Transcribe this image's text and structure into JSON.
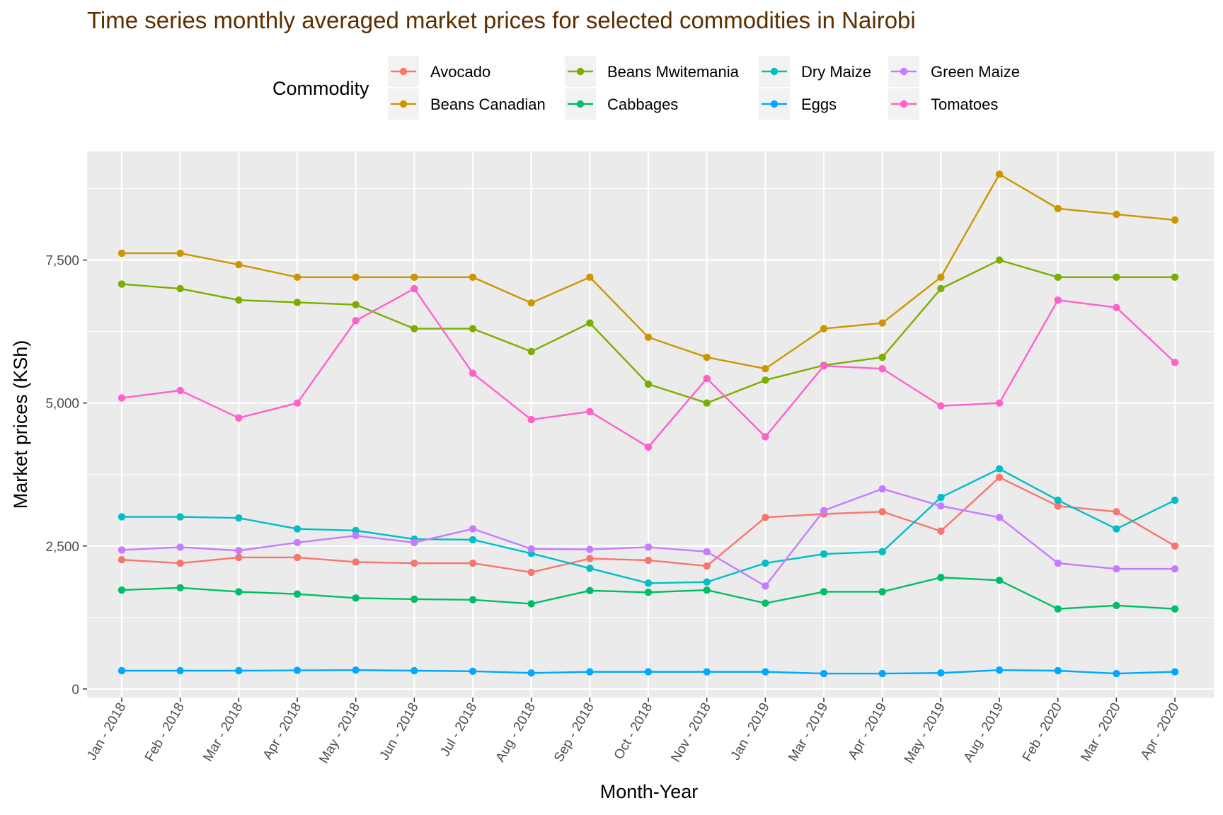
{
  "chart_data": {
    "type": "line",
    "title": "Time series monthly averaged market prices for selected commodities in Nairobi",
    "xlabel": "Month-Year",
    "ylabel": "Market prices (KSh)",
    "ylim": [
      -150,
      9400
    ],
    "yticks": [
      0,
      2500,
      5000,
      7500
    ],
    "ytick_labels": [
      "0",
      "2,500",
      "5,000",
      "7,500"
    ],
    "grid": true,
    "legend": {
      "title": "Commodity",
      "placement": "top"
    },
    "categories": [
      "Jan - 2018",
      "Feb - 2018",
      "Mar - 2018",
      "Apr - 2018",
      "May - 2018",
      "Jun - 2018",
      "Jul - 2018",
      "Aug - 2018",
      "Sep - 2018",
      "Oct - 2018",
      "Nov - 2018",
      "Jan - 2019",
      "Mar - 2019",
      "Apr - 2019",
      "May - 2019",
      "Aug - 2019",
      "Feb - 2020",
      "Mar - 2020",
      "Apr - 2020"
    ],
    "series": [
      {
        "name": "Avocado",
        "color": "#F8766D",
        "values": [
          2260,
          2200,
          2300,
          2300,
          2220,
          2200,
          2200,
          2040,
          2280,
          2250,
          2150,
          3000,
          3060,
          3100,
          2760,
          3700,
          3200,
          3100,
          2500
        ]
      },
      {
        "name": "Beans Canadian",
        "color": "#CD9600",
        "values": [
          7620,
          7620,
          7420,
          7200,
          7200,
          7200,
          7200,
          6750,
          7200,
          6150,
          5800,
          5600,
          6300,
          6400,
          7200,
          9000,
          8400,
          8300,
          8200
        ]
      },
      {
        "name": "Beans Mwitemania",
        "color": "#7CAE00",
        "values": [
          7080,
          7000,
          6800,
          6760,
          6720,
          6300,
          6300,
          5900,
          6400,
          5330,
          5000,
          5400,
          5660,
          5800,
          7000,
          7500,
          7200,
          7200,
          7200
        ]
      },
      {
        "name": "Cabbages",
        "color": "#00BE67",
        "values": [
          1730,
          1770,
          1700,
          1660,
          1590,
          1570,
          1560,
          1490,
          1720,
          1690,
          1730,
          1500,
          1700,
          1700,
          1950,
          1900,
          1400,
          1460,
          1400
        ]
      },
      {
        "name": "Dry Maize",
        "color": "#00BFC4",
        "values": [
          3010,
          3010,
          2990,
          2800,
          2770,
          2620,
          2610,
          2370,
          2110,
          1850,
          1870,
          2200,
          2360,
          2400,
          3350,
          3850,
          3300,
          2800,
          3300
        ]
      },
      {
        "name": "Eggs",
        "color": "#00A9FF",
        "values": [
          320,
          320,
          320,
          325,
          330,
          320,
          310,
          280,
          300,
          300,
          300,
          300,
          270,
          270,
          280,
          330,
          320,
          270,
          300
        ]
      },
      {
        "name": "Green Maize",
        "color": "#C77CFF",
        "values": [
          2430,
          2480,
          2420,
          2560,
          2680,
          2560,
          2800,
          2450,
          2440,
          2480,
          2400,
          1800,
          3120,
          3500,
          3200,
          3000,
          2200,
          2100,
          2100
        ]
      },
      {
        "name": "Tomatoes",
        "color": "#FF61CC",
        "values": [
          5090,
          5220,
          4740,
          5000,
          6440,
          7000,
          5520,
          4710,
          4850,
          4230,
          5430,
          4410,
          5650,
          5600,
          4950,
          5000,
          6800,
          6670,
          5710
        ]
      }
    ]
  },
  "colors": {
    "panel_background": "#EBEBEB",
    "grid_major": "#FFFFFF",
    "title": "#5C2E00"
  }
}
